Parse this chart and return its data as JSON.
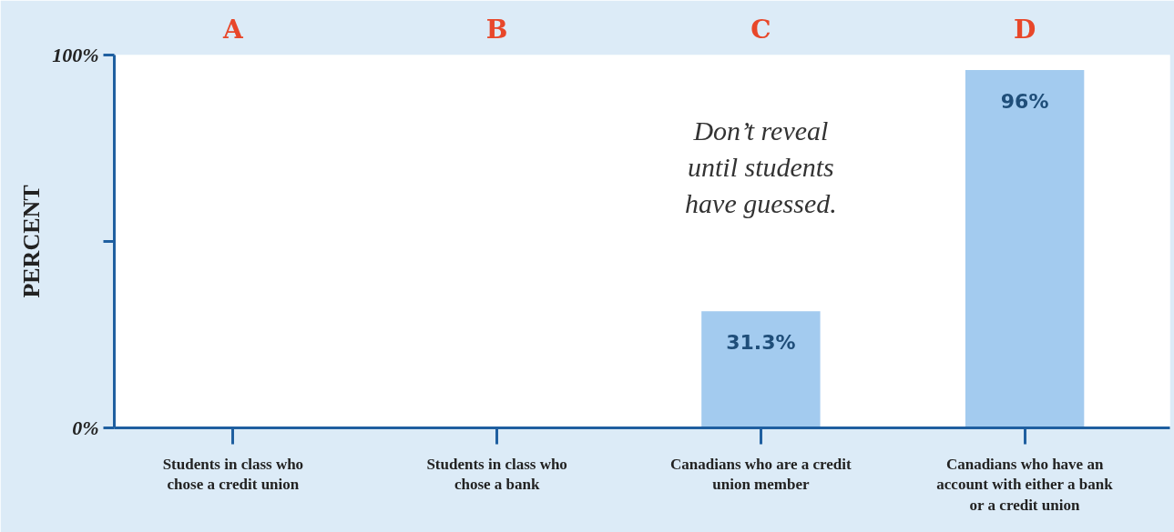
{
  "chart_data": {
    "type": "bar",
    "ylabel": "PERCENT",
    "categories": [
      "Students in class who chose a credit union",
      "Students in class who chose a bank",
      "Canadians who are a credit union member",
      "Canadians who have an account with either a bank or a credit union"
    ],
    "values": [
      null,
      null,
      31.3,
      96
    ],
    "value_labels": [
      null,
      null,
      "31.3%",
      "96%"
    ],
    "color": "#a3cbef",
    "ylim": [
      0,
      100
    ],
    "yticks": [
      {
        "value": 0,
        "label": "0%"
      },
      {
        "value": 50,
        "label": null
      },
      {
        "value": 100,
        "label": "100%"
      }
    ],
    "grid": false,
    "annotations": [
      "A",
      "B",
      "C",
      "D",
      "Don’t reveal until students have guessed."
    ]
  }
}
